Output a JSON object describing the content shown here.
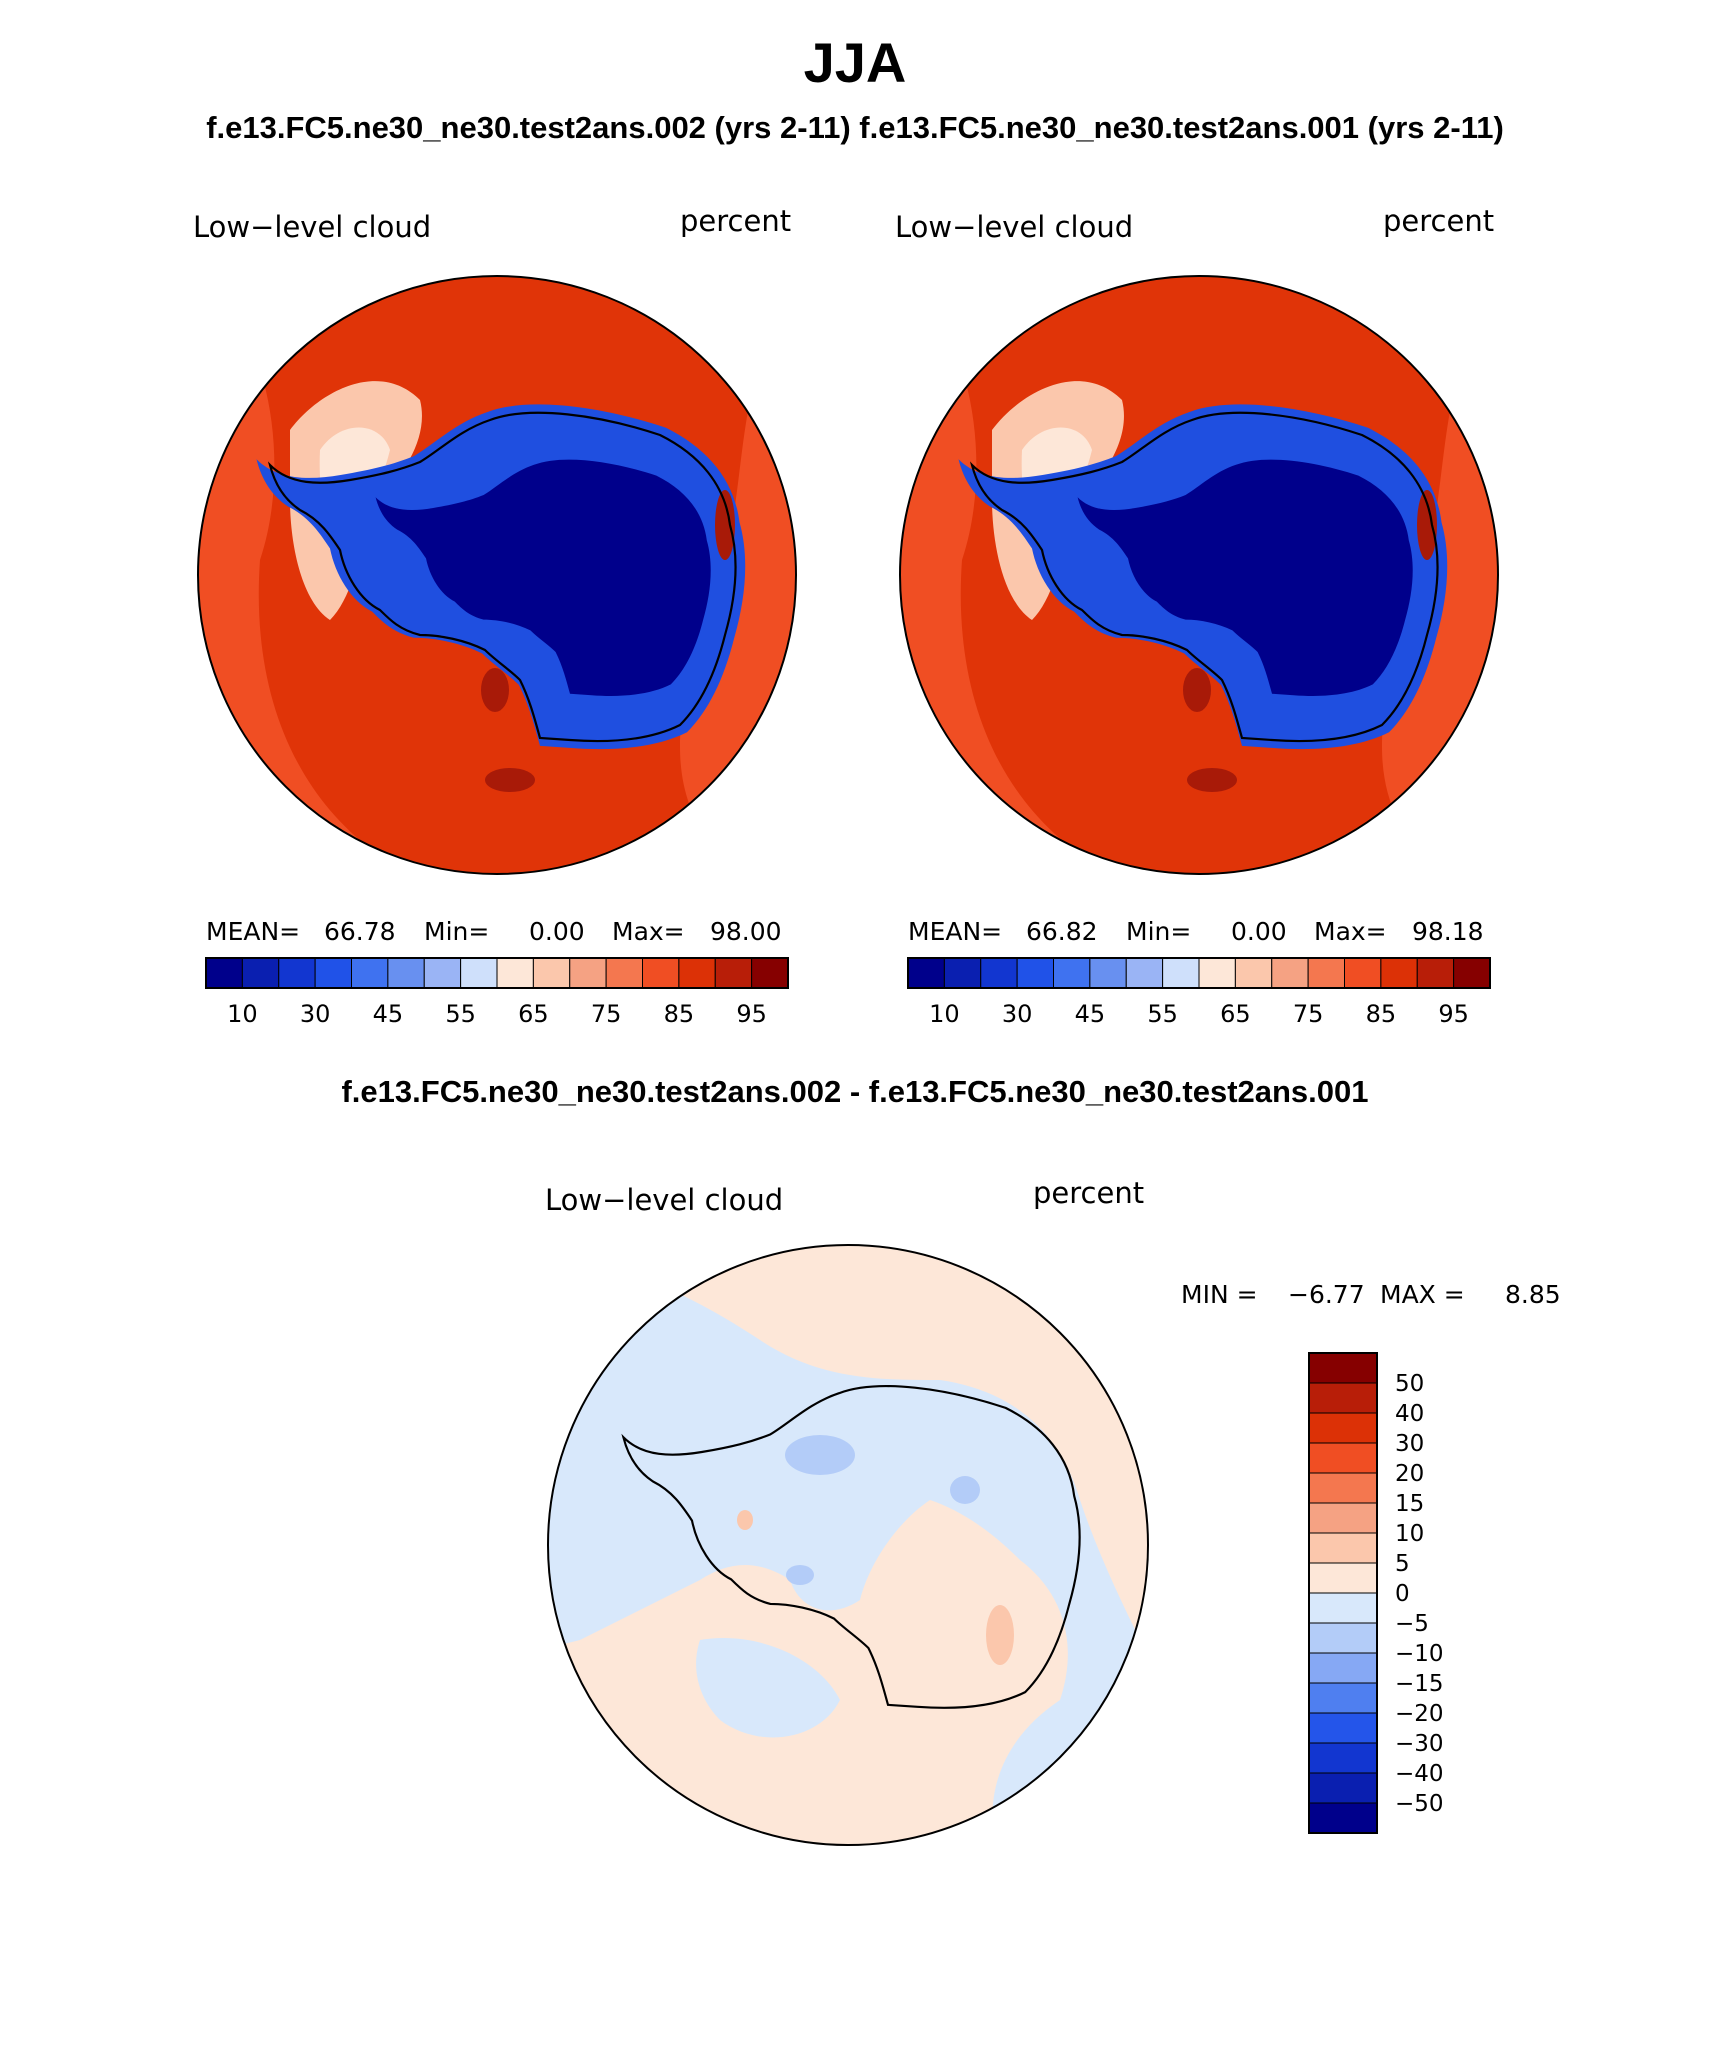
{
  "page": {
    "title": "JJA",
    "subtitle": "f.e13.FC5.ne30_ne30.test2ans.002 (yrs 2-11) f.e13.FC5.ne30_ne30.test2ans.001 (yrs 2-11)",
    "diff_title": "f.e13.FC5.ne30_ne30.test2ans.002 - f.e13.FC5.ne30_ne30.test2ans.001"
  },
  "maps": [
    {
      "variable": "Low−level cloud",
      "units": "percent",
      "stats": {
        "mean_label": "MEAN=",
        "mean": "66.78",
        "min_label": "Min=",
        "min": "0.00",
        "max_label": "Max=",
        "max": "98.00"
      }
    },
    {
      "variable": "Low−level cloud",
      "units": "percent",
      "stats": {
        "mean_label": "MEAN=",
        "mean": "66.82",
        "min_label": "Min=",
        "min": "0.00",
        "max_label": "Max=",
        "max": "98.18"
      }
    }
  ],
  "diff_map": {
    "variable": "Low−level cloud",
    "units": "percent",
    "min_label": "MIN =",
    "min": "−6.77",
    "max_label": "MAX =",
    "max": "8.85"
  },
  "colorbar_top": {
    "colors": [
      "#00008b",
      "#0a1fb0",
      "#1236d0",
      "#2052e8",
      "#3f72f0",
      "#6890f0",
      "#9ab4f5",
      "#cfe0fb",
      "#fde7d8",
      "#fbc7ac",
      "#f5a283",
      "#f4774f",
      "#f04e23",
      "#dc3106",
      "#b81e08",
      "#860000"
    ],
    "tick_labels": [
      "10",
      "30",
      "45",
      "55",
      "65",
      "75",
      "85",
      "95"
    ]
  },
  "colorbar_diff": {
    "colors_top_to_bottom": [
      "#860000",
      "#b81e08",
      "#dc3106",
      "#f04e23",
      "#f4774f",
      "#f5a283",
      "#fbc7ac",
      "#fde7d8",
      "#d8e8fb",
      "#b3ccf8",
      "#86a8f4",
      "#4f7ff0",
      "#2455ea",
      "#1236d0",
      "#0a1fb0",
      "#00008b"
    ],
    "tick_labels_top_to_bottom": [
      "50",
      "40",
      "30",
      "20",
      "15",
      "10",
      "5",
      "0",
      "−5",
      "−10",
      "−15",
      "−20",
      "−30",
      "−40",
      "−50"
    ]
  },
  "colors": {
    "ocean_dark": "#e03408",
    "ocean_mid": "#f04e23",
    "ocean_light": "#f4774f",
    "peach": "#fbc7ac",
    "continent_deep": "#00008b",
    "continent_mid": "#1f4fe0",
    "continent_light": "#5a82ee",
    "diff_peach": "#fde7d8",
    "diff_lightblue": "#d8e8fb",
    "diff_blue": "#b3ccf8"
  }
}
